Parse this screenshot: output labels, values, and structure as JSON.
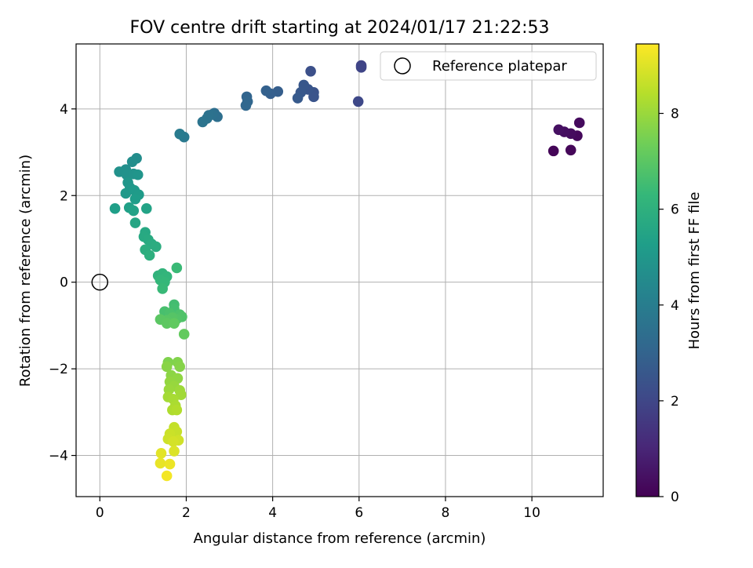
{
  "chart_data": {
    "type": "scatter",
    "title": "FOV centre drift starting at 2024/01/17 21:22:53",
    "xlabel": "Angular distance from reference (arcmin)",
    "ylabel": "Rotation from reference (arcmin)",
    "xlim": [
      -0.55,
      11.65
    ],
    "ylim": [
      -4.95,
      5.5
    ],
    "xticks": [
      0,
      2,
      4,
      6,
      8,
      10
    ],
    "yticks": [
      -4,
      -2,
      0,
      2,
      4
    ],
    "grid": true,
    "legend": {
      "placement": "upper-right",
      "entries": [
        "Reference platepar"
      ]
    },
    "reference_point": {
      "x": 0,
      "y": 0
    },
    "colorbar": {
      "label": "Hours from first FF file",
      "range": [
        0,
        9.45
      ],
      "ticks": [
        0,
        2,
        4,
        6,
        8
      ],
      "colormap": [
        "#440154",
        "#482878",
        "#3e4a89",
        "#31688e",
        "#26828e",
        "#1f9e89",
        "#35b779",
        "#6ece58",
        "#b5de2b",
        "#fde725"
      ]
    },
    "points": [
      {
        "x": 10.5,
        "y": 3.03,
        "t": 0.1
      },
      {
        "x": 10.9,
        "y": 3.05,
        "t": 0.15
      },
      {
        "x": 11.05,
        "y": 3.38,
        "t": 0.2
      },
      {
        "x": 11.1,
        "y": 3.68,
        "t": 0.25
      },
      {
        "x": 10.9,
        "y": 3.43,
        "t": 0.3
      },
      {
        "x": 10.75,
        "y": 3.47,
        "t": 0.35
      },
      {
        "x": 10.62,
        "y": 3.52,
        "t": 0.4
      },
      {
        "x": 6.05,
        "y": 5.0,
        "t": 1.9
      },
      {
        "x": 6.05,
        "y": 4.96,
        "t": 1.95
      },
      {
        "x": 5.98,
        "y": 4.17,
        "t": 2.05
      },
      {
        "x": 4.88,
        "y": 4.87,
        "t": 2.3
      },
      {
        "x": 4.95,
        "y": 4.38,
        "t": 2.4
      },
      {
        "x": 4.95,
        "y": 4.28,
        "t": 2.45
      },
      {
        "x": 4.82,
        "y": 4.45,
        "t": 2.5
      },
      {
        "x": 4.72,
        "y": 4.55,
        "t": 2.55
      },
      {
        "x": 4.65,
        "y": 4.38,
        "t": 2.6
      },
      {
        "x": 4.58,
        "y": 4.25,
        "t": 2.65
      },
      {
        "x": 4.12,
        "y": 4.4,
        "t": 2.8
      },
      {
        "x": 3.95,
        "y": 4.35,
        "t": 2.85
      },
      {
        "x": 3.85,
        "y": 4.42,
        "t": 2.9
      },
      {
        "x": 3.4,
        "y": 4.28,
        "t": 3.05
      },
      {
        "x": 3.42,
        "y": 4.17,
        "t": 3.1
      },
      {
        "x": 3.38,
        "y": 4.08,
        "t": 3.15
      },
      {
        "x": 2.65,
        "y": 3.9,
        "t": 3.4
      },
      {
        "x": 2.72,
        "y": 3.82,
        "t": 3.45
      },
      {
        "x": 2.6,
        "y": 3.87,
        "t": 3.5
      },
      {
        "x": 2.52,
        "y": 3.85,
        "t": 3.55
      },
      {
        "x": 2.48,
        "y": 3.78,
        "t": 3.6
      },
      {
        "x": 2.38,
        "y": 3.7,
        "t": 3.65
      },
      {
        "x": 1.95,
        "y": 3.35,
        "t": 3.85
      },
      {
        "x": 1.85,
        "y": 3.42,
        "t": 3.9
      },
      {
        "x": 0.85,
        "y": 2.86,
        "t": 4.6
      },
      {
        "x": 0.75,
        "y": 2.78,
        "t": 4.65
      },
      {
        "x": 0.6,
        "y": 2.6,
        "t": 4.7
      },
      {
        "x": 0.45,
        "y": 2.55,
        "t": 4.75
      },
      {
        "x": 0.62,
        "y": 2.48,
        "t": 4.8
      },
      {
        "x": 0.78,
        "y": 2.5,
        "t": 4.85
      },
      {
        "x": 0.88,
        "y": 2.48,
        "t": 4.9
      },
      {
        "x": 0.65,
        "y": 2.3,
        "t": 4.95
      },
      {
        "x": 0.7,
        "y": 2.18,
        "t": 5.0
      },
      {
        "x": 0.6,
        "y": 2.05,
        "t": 5.05
      },
      {
        "x": 0.8,
        "y": 2.12,
        "t": 5.1
      },
      {
        "x": 0.9,
        "y": 2.02,
        "t": 5.15
      },
      {
        "x": 0.82,
        "y": 1.92,
        "t": 5.2
      },
      {
        "x": 0.35,
        "y": 1.7,
        "t": 5.3
      },
      {
        "x": 0.68,
        "y": 1.72,
        "t": 5.35
      },
      {
        "x": 0.78,
        "y": 1.65,
        "t": 5.4
      },
      {
        "x": 1.08,
        "y": 1.7,
        "t": 5.45
      },
      {
        "x": 0.82,
        "y": 1.37,
        "t": 5.55
      },
      {
        "x": 1.05,
        "y": 1.15,
        "t": 5.65
      },
      {
        "x": 1.02,
        "y": 1.05,
        "t": 5.7
      },
      {
        "x": 1.12,
        "y": 0.98,
        "t": 5.75
      },
      {
        "x": 1.2,
        "y": 0.88,
        "t": 5.8
      },
      {
        "x": 1.3,
        "y": 0.82,
        "t": 5.85
      },
      {
        "x": 1.05,
        "y": 0.75,
        "t": 5.9
      },
      {
        "x": 1.15,
        "y": 0.62,
        "t": 5.95
      },
      {
        "x": 1.35,
        "y": 0.15,
        "t": 6.1
      },
      {
        "x": 1.45,
        "y": 0.2,
        "t": 6.15
      },
      {
        "x": 1.55,
        "y": 0.13,
        "t": 6.2
      },
      {
        "x": 1.4,
        "y": 0.05,
        "t": 6.25
      },
      {
        "x": 1.5,
        "y": 0.0,
        "t": 6.3
      },
      {
        "x": 1.45,
        "y": -0.15,
        "t": 6.35
      },
      {
        "x": 1.78,
        "y": 0.33,
        "t": 6.4
      },
      {
        "x": 1.72,
        "y": -0.52,
        "t": 6.55
      },
      {
        "x": 1.72,
        "y": -0.62,
        "t": 6.6
      },
      {
        "x": 1.5,
        "y": -0.68,
        "t": 6.65
      },
      {
        "x": 1.62,
        "y": -0.72,
        "t": 6.7
      },
      {
        "x": 1.85,
        "y": -0.75,
        "t": 6.75
      },
      {
        "x": 1.9,
        "y": -0.8,
        "t": 6.8
      },
      {
        "x": 1.78,
        "y": -0.85,
        "t": 6.85
      },
      {
        "x": 1.68,
        "y": -0.82,
        "t": 6.9
      },
      {
        "x": 1.55,
        "y": -0.88,
        "t": 6.95
      },
      {
        "x": 1.4,
        "y": -0.86,
        "t": 7.0
      },
      {
        "x": 1.55,
        "y": -0.95,
        "t": 7.05
      },
      {
        "x": 1.72,
        "y": -0.95,
        "t": 7.1
      },
      {
        "x": 1.95,
        "y": -1.2,
        "t": 7.15
      },
      {
        "x": 1.58,
        "y": -1.85,
        "t": 7.6
      },
      {
        "x": 1.8,
        "y": -1.85,
        "t": 7.65
      },
      {
        "x": 1.85,
        "y": -1.95,
        "t": 7.7
      },
      {
        "x": 1.55,
        "y": -1.95,
        "t": 7.75
      },
      {
        "x": 1.65,
        "y": -2.15,
        "t": 7.8
      },
      {
        "x": 1.8,
        "y": -2.22,
        "t": 7.85
      },
      {
        "x": 1.62,
        "y": -2.3,
        "t": 7.9
      },
      {
        "x": 1.72,
        "y": -2.4,
        "t": 7.95
      },
      {
        "x": 1.6,
        "y": -2.48,
        "t": 8.0
      },
      {
        "x": 1.85,
        "y": -2.5,
        "t": 8.05
      },
      {
        "x": 1.88,
        "y": -2.6,
        "t": 8.1
      },
      {
        "x": 1.58,
        "y": -2.65,
        "t": 8.15
      },
      {
        "x": 1.7,
        "y": -2.7,
        "t": 8.2
      },
      {
        "x": 1.75,
        "y": -2.85,
        "t": 8.25
      },
      {
        "x": 1.68,
        "y": -2.95,
        "t": 8.3
      },
      {
        "x": 1.78,
        "y": -2.95,
        "t": 8.35
      },
      {
        "x": 1.72,
        "y": -3.35,
        "t": 8.6
      },
      {
        "x": 1.78,
        "y": -3.45,
        "t": 8.65
      },
      {
        "x": 1.62,
        "y": -3.5,
        "t": 8.7
      },
      {
        "x": 1.58,
        "y": -3.62,
        "t": 8.75
      },
      {
        "x": 1.82,
        "y": -3.65,
        "t": 8.8
      },
      {
        "x": 1.7,
        "y": -3.68,
        "t": 8.85
      },
      {
        "x": 1.72,
        "y": -3.9,
        "t": 8.95
      },
      {
        "x": 1.42,
        "y": -3.95,
        "t": 9.05
      },
      {
        "x": 1.4,
        "y": -4.18,
        "t": 9.15
      },
      {
        "x": 1.62,
        "y": -4.2,
        "t": 9.2
      },
      {
        "x": 1.55,
        "y": -4.47,
        "t": 9.3
      }
    ]
  }
}
